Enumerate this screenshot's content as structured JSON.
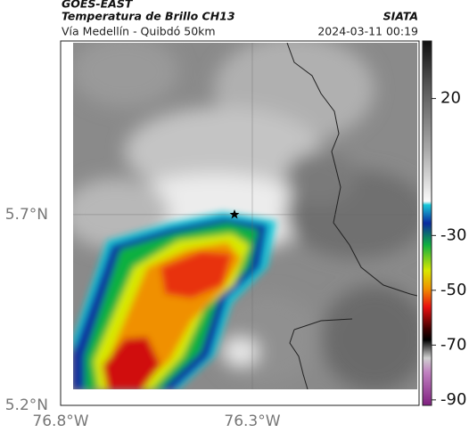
{
  "header": {
    "satellite": "GOES-EAST",
    "product": "Temperatura de Brillo CH13",
    "source": "SIATA",
    "region": "Vía Medellín - Quibdó 50km",
    "datetime": "2024-03-11 00:19"
  },
  "map": {
    "xlim": [
      -76.8,
      -75.865
    ],
    "ylim": [
      5.2,
      6.155
    ],
    "xticks": [
      {
        "value": -76.8,
        "label": "76.8°W"
      },
      {
        "value": -76.3,
        "label": "76.3°W"
      }
    ],
    "yticks": [
      {
        "value": 5.2,
        "label": "5.2°N"
      },
      {
        "value": 5.7,
        "label": "5.7°N"
      }
    ],
    "grid": true
  },
  "colorbar": {
    "lim": [
      -92,
      41
    ],
    "ticks": [
      20,
      -30,
      -50,
      -70,
      -90
    ]
  }
}
